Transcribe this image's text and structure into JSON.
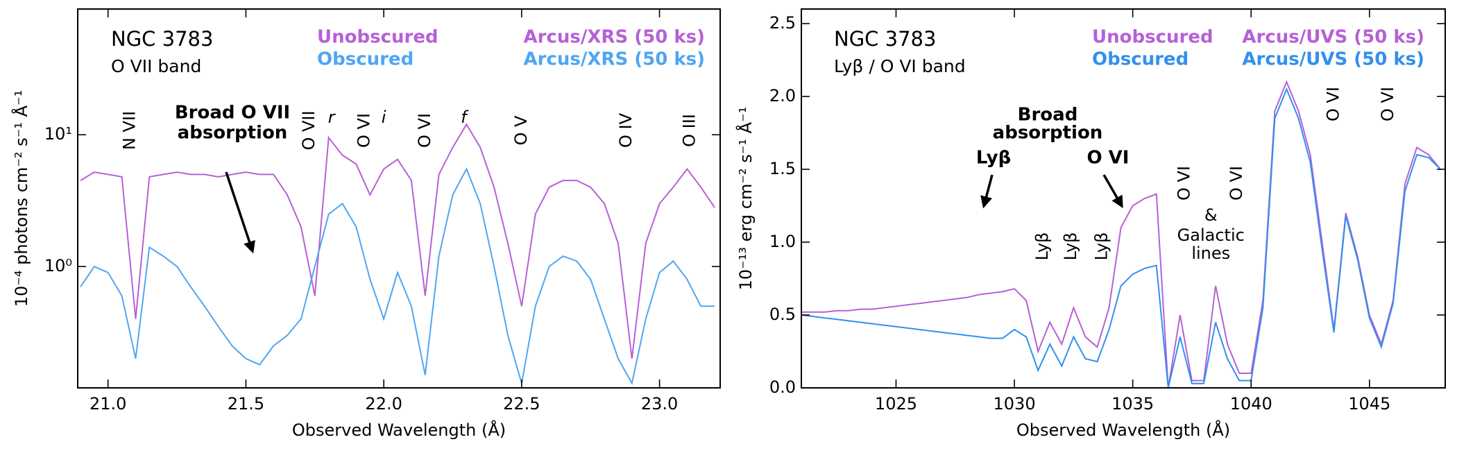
{
  "chart_data": [
    {
      "type": "line",
      "title": "NGC 3783",
      "subtitle": "O VII band",
      "x_label": "Observed Wavelength (Å)",
      "y_label": "10⁻⁴ photons cm⁻² s⁻¹ Å⁻¹",
      "yscale": "log",
      "xlim": [
        20.89,
        23.22
      ],
      "ylim": [
        0.12,
        90
      ],
      "xticks": [
        {
          "value": 21,
          "label": "21.0"
        },
        {
          "value": 21.5,
          "label": "21.5"
        },
        {
          "value": 22,
          "label": "22.0"
        },
        {
          "value": 22.5,
          "label": "22.5"
        },
        {
          "value": 23,
          "label": "23.0"
        }
      ],
      "yticks": [
        {
          "value": 1,
          "label": "10⁰"
        },
        {
          "value": 10,
          "label": "10¹"
        }
      ],
      "x": [
        20.9,
        20.95,
        21.0,
        21.05,
        21.1,
        21.15,
        21.2,
        21.25,
        21.3,
        21.35,
        21.4,
        21.45,
        21.5,
        21.55,
        21.6,
        21.65,
        21.7,
        21.75,
        21.8,
        21.85,
        21.9,
        21.95,
        22.0,
        22.05,
        22.1,
        22.15,
        22.2,
        22.25,
        22.3,
        22.35,
        22.4,
        22.45,
        22.5,
        22.55,
        22.6,
        22.65,
        22.7,
        22.75,
        22.8,
        22.85,
        22.9,
        22.95,
        23.0,
        23.05,
        23.1,
        23.15,
        23.2
      ],
      "series": [
        {
          "name": "Unobscured",
          "instrument": "Arcus/XRS (50 ks)",
          "color": "#b660d6",
          "values": [
            4.5,
            5.2,
            5.0,
            4.8,
            0.4,
            4.8,
            5.0,
            5.2,
            5.0,
            5.0,
            4.8,
            5.0,
            5.2,
            5.0,
            5.0,
            3.5,
            2.0,
            0.6,
            9.5,
            7.0,
            6.0,
            3.5,
            5.5,
            6.5,
            4.5,
            0.6,
            5.0,
            8.0,
            12.0,
            8.0,
            4.0,
            1.5,
            0.5,
            2.5,
            4.0,
            4.5,
            4.5,
            4.0,
            3.0,
            1.5,
            0.2,
            1.5,
            3.0,
            4.0,
            5.5,
            4.0,
            2.8
          ]
        },
        {
          "name": "Obscured",
          "instrument": "Arcus/XRS (50 ks)",
          "color": "#4ea6f2",
          "values": [
            0.7,
            1.0,
            0.9,
            0.6,
            0.2,
            1.4,
            1.2,
            1.0,
            0.7,
            0.5,
            0.35,
            0.25,
            0.2,
            0.18,
            0.25,
            0.3,
            0.4,
            1.0,
            2.5,
            3.0,
            2.0,
            0.8,
            0.4,
            0.9,
            0.5,
            0.15,
            1.2,
            3.5,
            5.5,
            3.0,
            1.0,
            0.3,
            0.13,
            0.5,
            1.0,
            1.2,
            1.1,
            0.8,
            0.4,
            0.2,
            0.13,
            0.4,
            0.9,
            1.1,
            0.8,
            0.5,
            0.5
          ]
        }
      ],
      "line_labels": [
        "N VII",
        "O VII",
        "r",
        "O VI",
        "i",
        "O VI",
        "f",
        "O V",
        "O IV",
        "O III"
      ],
      "annotations": [
        "Broad O VII",
        "absorption"
      ]
    },
    {
      "type": "line",
      "title": "NGC 3783",
      "subtitle": "Lyβ / O VI band",
      "x_label": "Observed Wavelength (Å)",
      "y_label": "10⁻¹³ erg cm⁻² s⁻¹ Å⁻¹",
      "xlim": [
        1021,
        1048.2
      ],
      "ylim": [
        0,
        2.6
      ],
      "xticks": [
        1025,
        1030,
        1035,
        1040,
        1045
      ],
      "yticks": [
        {
          "value": 0,
          "label": "0.0"
        },
        0.5,
        {
          "value": 1,
          "label": "1.0"
        },
        1.5,
        {
          "value": 2,
          "label": "2.0"
        },
        2.5
      ],
      "x": [
        1021,
        1021.5,
        1022,
        1022.5,
        1023,
        1023.5,
        1024,
        1024.5,
        1025,
        1025.5,
        1026,
        1026.5,
        1027,
        1027.5,
        1028,
        1028.5,
        1029,
        1029.5,
        1030,
        1030.5,
        1031,
        1031.5,
        1032,
        1032.5,
        1033,
        1033.5,
        1034,
        1034.5,
        1035,
        1035.5,
        1036,
        1036.5,
        1037,
        1037.5,
        1038,
        1038.5,
        1039,
        1039.5,
        1040,
        1040.5,
        1041,
        1041.5,
        1042,
        1042.5,
        1043,
        1043.5,
        1044,
        1044.5,
        1045,
        1045.5,
        1046,
        1046.5,
        1047,
        1047.5,
        1048
      ],
      "series": [
        {
          "name": "Unobscured",
          "instrument": "Arcus/UVS (50 ks)",
          "color": "#b660d6",
          "values": [
            0.52,
            0.52,
            0.52,
            0.53,
            0.53,
            0.54,
            0.54,
            0.55,
            0.56,
            0.57,
            0.58,
            0.59,
            0.6,
            0.61,
            0.62,
            0.64,
            0.65,
            0.66,
            0.68,
            0.6,
            0.25,
            0.45,
            0.3,
            0.55,
            0.35,
            0.28,
            0.55,
            1.1,
            1.25,
            1.3,
            1.33,
            0.0,
            0.5,
            0.05,
            0.05,
            0.7,
            0.3,
            0.1,
            0.1,
            0.6,
            1.9,
            2.1,
            1.9,
            1.6,
            1.0,
            0.4,
            1.2,
            0.9,
            0.5,
            0.3,
            0.6,
            1.4,
            1.65,
            1.6,
            1.5
          ]
        },
        {
          "name": "Obscured",
          "instrument": "Arcus/UVS (50 ks)",
          "color": "#3190ee",
          "values": [
            0.5,
            0.49,
            0.48,
            0.47,
            0.46,
            0.45,
            0.44,
            0.43,
            0.42,
            0.41,
            0.4,
            0.39,
            0.38,
            0.37,
            0.36,
            0.35,
            0.34,
            0.34,
            0.4,
            0.35,
            0.12,
            0.3,
            0.15,
            0.35,
            0.2,
            0.18,
            0.4,
            0.7,
            0.78,
            0.82,
            0.84,
            0.0,
            0.35,
            0.03,
            0.03,
            0.45,
            0.2,
            0.05,
            0.05,
            0.55,
            1.85,
            2.05,
            1.85,
            1.55,
            0.95,
            0.38,
            1.18,
            0.88,
            0.48,
            0.28,
            0.58,
            1.35,
            1.6,
            1.58,
            1.5
          ]
        }
      ],
      "line_labels": [
        "Lyβ",
        "Lyβ",
        "Lyβ",
        "O VI",
        "O VI",
        "O VI",
        "O VI"
      ],
      "galactic_note": [
        "&",
        "Galactic",
        "lines"
      ],
      "annotations": [
        "Broad",
        "absorption",
        "Lyβ",
        "O VI"
      ]
    }
  ]
}
